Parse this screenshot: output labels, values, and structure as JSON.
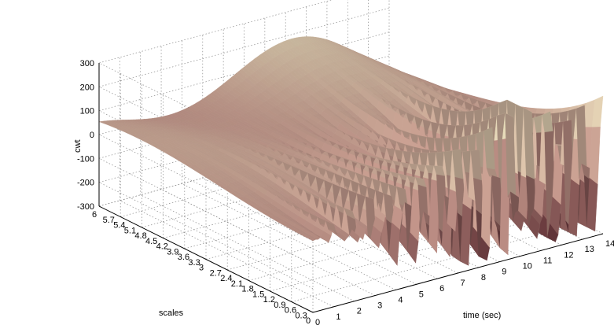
{
  "chart_data": {
    "type": "surface",
    "title": "",
    "xlabel": "time (sec)",
    "ylabel": "scales",
    "zlabel": "cwt",
    "xlim": [
      0,
      14
    ],
    "zlim": [
      -300,
      300
    ],
    "x_ticks": [
      "0",
      "1",
      "2",
      "3",
      "4",
      "5",
      "6",
      "7",
      "8",
      "9",
      "10",
      "11",
      "12",
      "13",
      "14"
    ],
    "scale_ticks": [
      "6",
      "5.7",
      "5.4",
      "5.1",
      "4.8",
      "4.5",
      "4.2",
      "3.9",
      "3.6",
      "3.3",
      "3",
      "2.7",
      "2.4",
      "2.1",
      "1.8",
      "1.5",
      "1.2",
      "0.9",
      "0.6",
      "0.3",
      "0"
    ],
    "z_ticks": [
      "300",
      "200",
      "100",
      "0",
      "-100",
      "-200",
      "-300"
    ],
    "colormap": "pink",
    "colors": {
      "low": "#5a2a30",
      "mid": "#c79b90",
      "high": "#f3efc8"
    },
    "grid": true
  }
}
